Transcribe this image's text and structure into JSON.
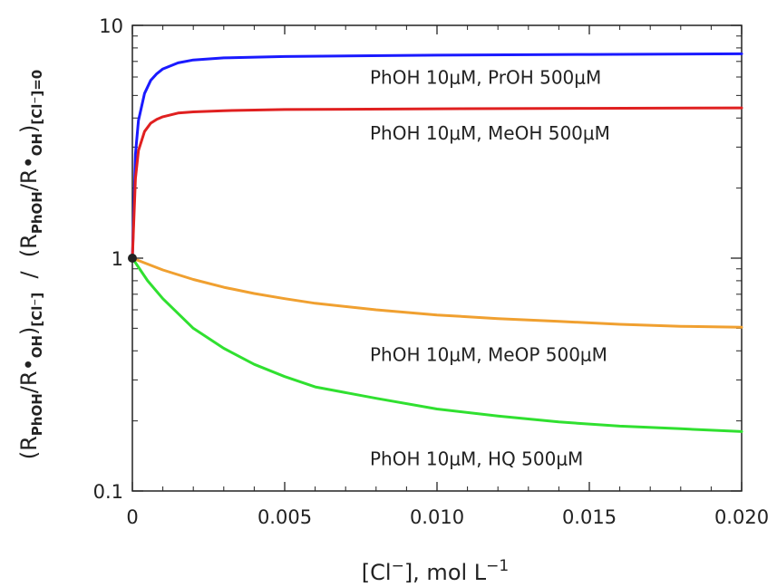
{
  "chart_data": {
    "type": "line",
    "xlabel": "[Cl⁻], mol L⁻¹",
    "xlabel_parts": {
      "main": "[Cl",
      "sup1": "−",
      "mid": "], mol L",
      "sup2": "−1"
    },
    "ylabel_parts": {
      "open1": "(R",
      "sub1": "PhOH",
      "slash1": "/R•",
      "sub2": "OH",
      "close1": ")",
      "sub3": "[Cl⁻]",
      "divider": "  /  ",
      "open2": "(R",
      "sub4": "PhOH",
      "slash2": "/R•",
      "sub5": "OH",
      "close2": ")",
      "sub6": "[Cl⁻]=0"
    },
    "xlim": [
      0,
      0.02
    ],
    "ylim": [
      0.1,
      10
    ],
    "yscale": "log",
    "x_ticks": [
      0,
      0.005,
      0.01,
      0.015,
      0.02
    ],
    "x_tick_labels": [
      "0",
      "0.005",
      "0.010",
      "0.015",
      "0.020"
    ],
    "y_ticks": [
      0.1,
      1,
      10
    ],
    "y_tick_labels": [
      "0.1",
      "1",
      "10"
    ],
    "grid": false,
    "start_point": {
      "x": 0,
      "y": 1
    },
    "series": [
      {
        "name": "PhOH 10μM, PrOH 500μM",
        "color": "#1a1aff",
        "x": [
          0,
          0.0001,
          0.0002,
          0.0004,
          0.0006,
          0.0008,
          0.001,
          0.0015,
          0.002,
          0.003,
          0.005,
          0.01,
          0.015,
          0.02
        ],
        "y": [
          1,
          2.8,
          3.9,
          5.1,
          5.8,
          6.2,
          6.5,
          6.9,
          7.1,
          7.25,
          7.35,
          7.45,
          7.5,
          7.55
        ]
      },
      {
        "name": "PhOH 10μM, MeOH 500μM",
        "color": "#e02020",
        "x": [
          0,
          0.0001,
          0.0002,
          0.0004,
          0.0006,
          0.0008,
          0.001,
          0.0015,
          0.002,
          0.003,
          0.005,
          0.01,
          0.015,
          0.02
        ],
        "y": [
          1,
          2.2,
          2.9,
          3.5,
          3.8,
          3.95,
          4.05,
          4.2,
          4.25,
          4.3,
          4.35,
          4.38,
          4.4,
          4.42
        ]
      },
      {
        "name": "PhOH 10μM, MeOP 500μM",
        "color": "#f0a030",
        "x": [
          0,
          0.001,
          0.002,
          0.003,
          0.004,
          0.005,
          0.006,
          0.008,
          0.01,
          0.012,
          0.014,
          0.016,
          0.018,
          0.02
        ],
        "y": [
          1,
          0.89,
          0.81,
          0.75,
          0.705,
          0.67,
          0.64,
          0.6,
          0.57,
          0.55,
          0.535,
          0.52,
          0.51,
          0.505
        ]
      },
      {
        "name": "PhOH 10μM, HQ 500μM",
        "color": "#30e030",
        "x": [
          0,
          0.0005,
          0.001,
          0.002,
          0.003,
          0.004,
          0.005,
          0.006,
          0.008,
          0.01,
          0.012,
          0.014,
          0.016,
          0.018,
          0.02
        ],
        "y": [
          1,
          0.8,
          0.67,
          0.5,
          0.41,
          0.35,
          0.31,
          0.28,
          0.25,
          0.225,
          0.21,
          0.198,
          0.19,
          0.185,
          0.18
        ]
      }
    ],
    "colors": {
      "axis": "#222222",
      "marker": "#222222"
    }
  }
}
